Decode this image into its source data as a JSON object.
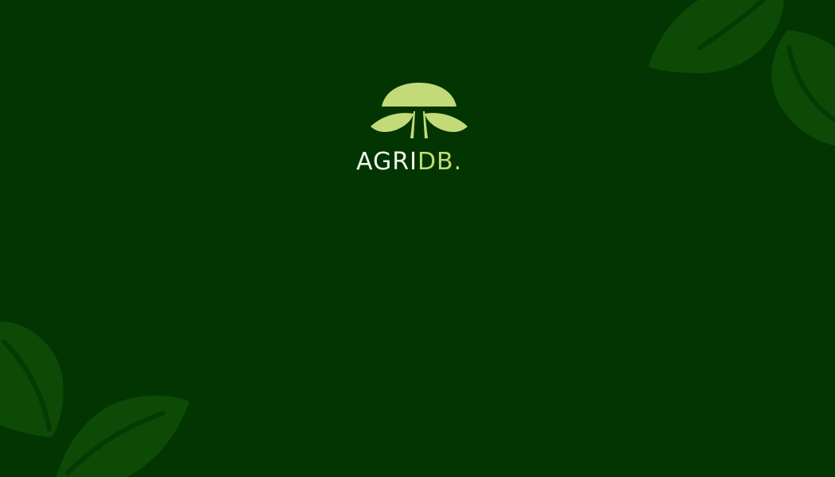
{
  "brand": {
    "name_primary": "AGRI",
    "name_secondary": "DB.",
    "logo_icon": "sprout-sun-logo-icon"
  },
  "colors": {
    "background": "#023502",
    "leaf": "#0d4a06",
    "leaf_vein": "#063a03",
    "logo_accent": "#c2da78",
    "wordmark_light": "#f3f7ef"
  },
  "decorations": {
    "leaf_icon": "leaf-icon"
  }
}
